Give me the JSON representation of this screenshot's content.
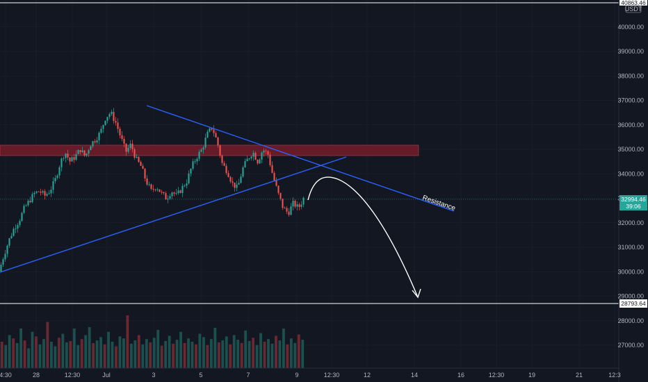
{
  "chart_data": {
    "type": "candlestick",
    "currency": "USDT",
    "top_price_label": "40863.46",
    "y_ticks": [
      40000,
      39000,
      38000,
      37000,
      36000,
      35000,
      34000,
      33000,
      32000,
      31000,
      30000,
      29000,
      28000,
      27000
    ],
    "y_tick_labels": [
      "40000.00",
      "39000.00",
      "38000.00",
      "37000.00",
      "36000.00",
      "35000.00",
      "34000.00",
      "33000.00",
      "32000.00",
      "31000.00",
      "30000.00",
      "29000.00",
      "28000.00",
      "27000.00"
    ],
    "x_tick_labels": [
      "4:30",
      "28",
      "12:30",
      "Jul",
      "3",
      "5",
      "7",
      "9",
      "12:30",
      "12",
      "14",
      "16",
      "12:30",
      "19",
      "21",
      "12:3"
    ],
    "last_price": {
      "value": 32994.46,
      "label": "32994.46",
      "countdown": "39:06"
    },
    "reference_price": {
      "value": 28793.64,
      "label": "28793.64"
    },
    "annotations": [
      {
        "text": "Resistance"
      }
    ],
    "resistance_zone": {
      "from": 34800,
      "to": 35200
    },
    "price_path": [
      [
        0,
        30000
      ],
      [
        2,
        30700
      ],
      [
        4,
        31300
      ],
      [
        6,
        31800
      ],
      [
        8,
        32100
      ],
      [
        10,
        32600
      ],
      [
        12,
        32900
      ],
      [
        14,
        33200
      ],
      [
        16,
        33300
      ],
      [
        18,
        33100
      ],
      [
        20,
        33300
      ],
      [
        22,
        33700
      ],
      [
        24,
        34400
      ],
      [
        26,
        34900
      ],
      [
        28,
        34500
      ],
      [
        30,
        34700
      ],
      [
        32,
        35000
      ],
      [
        34,
        34700
      ],
      [
        36,
        35200
      ],
      [
        38,
        35400
      ],
      [
        40,
        35700
      ],
      [
        42,
        36300
      ],
      [
        44,
        36500
      ],
      [
        46,
        36100
      ],
      [
        48,
        35500
      ],
      [
        50,
        34900
      ],
      [
        52,
        35200
      ],
      [
        54,
        34600
      ],
      [
        56,
        34300
      ],
      [
        58,
        33700
      ],
      [
        60,
        33300
      ],
      [
        62,
        33500
      ],
      [
        64,
        33200
      ],
      [
        66,
        33000
      ],
      [
        68,
        33300
      ],
      [
        70,
        33100
      ],
      [
        72,
        33400
      ],
      [
        74,
        33700
      ],
      [
        76,
        34300
      ],
      [
        78,
        34700
      ],
      [
        80,
        35000
      ],
      [
        82,
        35600
      ],
      [
        84,
        35900
      ],
      [
        86,
        35300
      ],
      [
        88,
        34400
      ],
      [
        90,
        34100
      ],
      [
        92,
        33600
      ],
      [
        94,
        33400
      ],
      [
        96,
        34200
      ],
      [
        98,
        34600
      ],
      [
        100,
        34900
      ],
      [
        102,
        34500
      ],
      [
        104,
        35000
      ],
      [
        106,
        34800
      ],
      [
        108,
        33900
      ],
      [
        110,
        33200
      ],
      [
        112,
        32600
      ],
      [
        114,
        32400
      ],
      [
        116,
        32800
      ],
      [
        118,
        32600
      ],
      [
        120,
        32994
      ]
    ],
    "volume": [
      40,
      35,
      50,
      45,
      38,
      60,
      42,
      30,
      55,
      48,
      36,
      44,
      70,
      40,
      33,
      46,
      52,
      39,
      41,
      60,
      35,
      44,
      50,
      62,
      38,
      42,
      47,
      36,
      55,
      40,
      33,
      48,
      45,
      80,
      37,
      42,
      50,
      36,
      44,
      39,
      46,
      58,
      34,
      41,
      49,
      37,
      43,
      55,
      38,
      45,
      40,
      36,
      52,
      47,
      35,
      44,
      61,
      39,
      42,
      48,
      36,
      50,
      43,
      38,
      57,
      41,
      46,
      35,
      53,
      40,
      44,
      37,
      49,
      42,
      60,
      36,
      45,
      38,
      51,
      43
    ]
  }
}
